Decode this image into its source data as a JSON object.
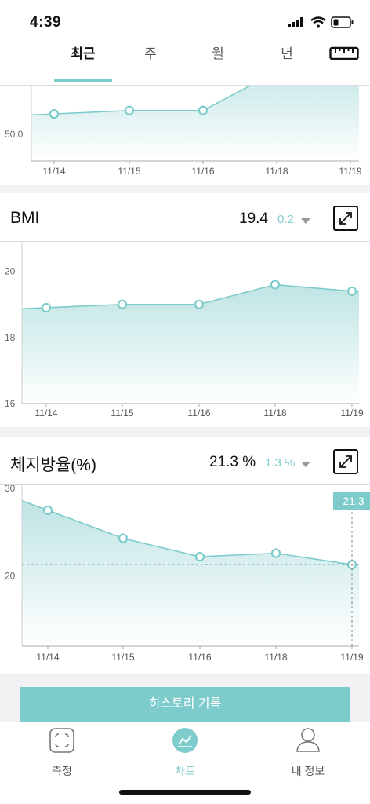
{
  "status": {
    "time": "4:39"
  },
  "tabs": [
    {
      "label": "최근",
      "active": true
    },
    {
      "label": "주",
      "active": false
    },
    {
      "label": "월",
      "active": false
    },
    {
      "label": "년",
      "active": false
    }
  ],
  "weight_chart": {
    "y_tick": "50.0",
    "x_labels": [
      "11/14",
      "11/15",
      "11/16",
      "11/18",
      "11/19"
    ]
  },
  "bmi": {
    "title": "BMI",
    "value": "19.4",
    "change": "0.2"
  },
  "fat": {
    "title": "체지방율(%)",
    "value": "21.3 %",
    "change": "1.3 %",
    "tooltip": "21.3"
  },
  "history_button": "히스토리 기록",
  "nav": {
    "measure": "측정",
    "chart": "차트",
    "profile": "내 정보"
  },
  "colors": {
    "accent": "#7ecbcb",
    "fill": "#d7eeee"
  },
  "chart_data": [
    {
      "type": "area",
      "title": "",
      "categories": [
        "11/14",
        "11/15",
        "11/16",
        "11/18",
        "11/19"
      ],
      "values": [
        52.3,
        52.6,
        52.6,
        56.0,
        57.0
      ],
      "y_ticks": [
        50.0
      ],
      "note": "partially visible weight chart; values estimated"
    },
    {
      "type": "area",
      "title": "BMI",
      "categories": [
        "11/14",
        "11/15",
        "11/16",
        "11/18",
        "11/19"
      ],
      "values": [
        18.9,
        19.0,
        19.0,
        19.6,
        19.4
      ],
      "y_ticks": [
        16,
        18,
        20
      ],
      "ylim": [
        16,
        20.8
      ]
    },
    {
      "type": "area",
      "title": "체지방율(%)",
      "categories": [
        "11/14",
        "11/15",
        "11/16",
        "11/18",
        "11/19"
      ],
      "values": [
        27.5,
        24.3,
        22.2,
        22.6,
        21.3
      ],
      "y_ticks": [
        20,
        30
      ],
      "ylim": [
        12,
        30
      ]
    }
  ]
}
